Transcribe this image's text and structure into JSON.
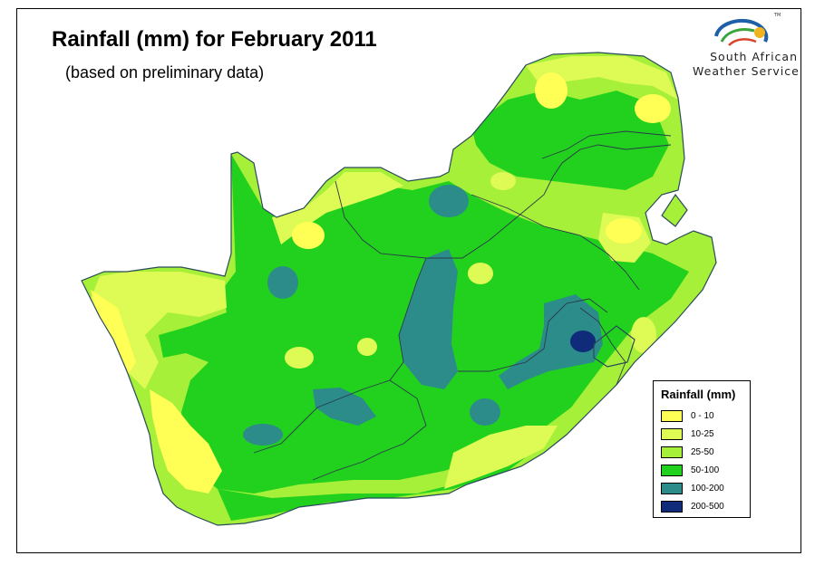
{
  "title": "Rainfall (mm) for February 2011",
  "subtitle": "(based on preliminary data)",
  "logo": {
    "line1": "South African",
    "line2": "Weather Service",
    "trademark": "TM",
    "colors": [
      "#1f5fa8",
      "#3aa53a",
      "#f2b21e",
      "#d9442b"
    ]
  },
  "legend": {
    "title": "Rainfall (mm)",
    "items": [
      {
        "label": "0 - 10",
        "color": "#ffff55"
      },
      {
        "label": "10-25",
        "color": "#ddfa55"
      },
      {
        "label": "25-50",
        "color": "#a6f03a"
      },
      {
        "label": "50-100",
        "color": "#22d11e"
      },
      {
        "label": "100-200",
        "color": "#2b8c8a"
      },
      {
        "label": "200-500",
        "color": "#0f2b7a"
      }
    ]
  }
}
